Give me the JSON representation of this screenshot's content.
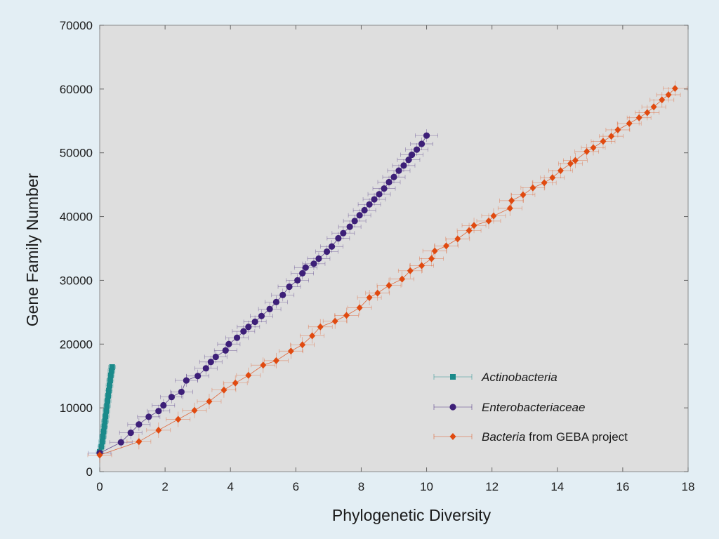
{
  "chart_data": {
    "type": "scatter",
    "title": "",
    "xlabel": "Phylogenetic Diversity",
    "ylabel": "Gene Family Number",
    "xlim": [
      0,
      18
    ],
    "ylim": [
      0,
      70000
    ],
    "xticks": [
      0,
      2,
      4,
      6,
      8,
      10,
      12,
      14,
      16,
      18
    ],
    "yticks": [
      0,
      10000,
      20000,
      30000,
      40000,
      50000,
      60000,
      70000
    ],
    "xtick_labels": [
      "0",
      "2",
      "4",
      "6",
      "8",
      "10",
      "12",
      "14",
      "16",
      "18"
    ],
    "ytick_labels": [
      "0",
      "10000",
      "20000",
      "30000",
      "40000",
      "50000",
      "60000",
      "70000"
    ],
    "grid": false,
    "error_bars": "horizontal and vertical on every point",
    "legend_position": "bottom-right",
    "background_color": "#e0e0e0",
    "series": [
      {
        "name": "Actinobacteria",
        "marker": "square",
        "color": "#1a8a8a",
        "points": [
          [
            0.0,
            3100
          ],
          [
            0.05,
            3900
          ],
          [
            0.08,
            4700
          ],
          [
            0.1,
            5500
          ],
          [
            0.12,
            6300
          ],
          [
            0.14,
            7100
          ],
          [
            0.16,
            7900
          ],
          [
            0.18,
            8700
          ],
          [
            0.2,
            9500
          ],
          [
            0.22,
            10300
          ],
          [
            0.24,
            11100
          ],
          [
            0.26,
            11900
          ],
          [
            0.28,
            12700
          ],
          [
            0.3,
            13500
          ],
          [
            0.32,
            14300
          ],
          [
            0.34,
            15100
          ],
          [
            0.36,
            15800
          ],
          [
            0.38,
            16400
          ]
        ]
      },
      {
        "name": "Enterobacteriaceae",
        "marker": "circle",
        "color": "#3d1f78",
        "points": [
          [
            0.0,
            2900
          ],
          [
            0.65,
            4600
          ],
          [
            0.95,
            6100
          ],
          [
            1.2,
            7400
          ],
          [
            1.5,
            8600
          ],
          [
            1.8,
            9500
          ],
          [
            1.95,
            10400
          ],
          [
            2.2,
            11700
          ],
          [
            2.5,
            12500
          ],
          [
            2.65,
            14300
          ],
          [
            3.0,
            15000
          ],
          [
            3.25,
            16200
          ],
          [
            3.4,
            17200
          ],
          [
            3.55,
            18000
          ],
          [
            3.85,
            19000
          ],
          [
            3.95,
            20000
          ],
          [
            4.2,
            21000
          ],
          [
            4.4,
            22000
          ],
          [
            4.55,
            22700
          ],
          [
            4.75,
            23500
          ],
          [
            4.95,
            24400
          ],
          [
            5.2,
            25500
          ],
          [
            5.4,
            26600
          ],
          [
            5.6,
            27700
          ],
          [
            5.8,
            29000
          ],
          [
            6.05,
            30000
          ],
          [
            6.2,
            31100
          ],
          [
            6.3,
            32000
          ],
          [
            6.55,
            32600
          ],
          [
            6.7,
            33400
          ],
          [
            6.95,
            34500
          ],
          [
            7.1,
            35300
          ],
          [
            7.3,
            36600
          ],
          [
            7.45,
            37400
          ],
          [
            7.65,
            38400
          ],
          [
            7.8,
            39300
          ],
          [
            7.95,
            40200
          ],
          [
            8.1,
            41000
          ],
          [
            8.25,
            41900
          ],
          [
            8.4,
            42700
          ],
          [
            8.55,
            43500
          ],
          [
            8.7,
            44400
          ],
          [
            8.85,
            45400
          ],
          [
            9.0,
            46200
          ],
          [
            9.15,
            47200
          ],
          [
            9.3,
            48000
          ],
          [
            9.45,
            48900
          ],
          [
            9.55,
            49700
          ],
          [
            9.7,
            50500
          ],
          [
            9.85,
            51400
          ],
          [
            10.0,
            52700
          ]
        ]
      },
      {
        "name": "Bacteria from GEBA project",
        "name_italic": "Bacteria",
        "name_rest": " from GEBA project",
        "marker": "diamond",
        "color": "#e04a10",
        "points": [
          [
            0.0,
            2600
          ],
          [
            1.2,
            4700
          ],
          [
            1.8,
            6500
          ],
          [
            2.4,
            8200
          ],
          [
            2.9,
            9600
          ],
          [
            3.35,
            11000
          ],
          [
            3.8,
            12800
          ],
          [
            4.15,
            13900
          ],
          [
            4.55,
            15100
          ],
          [
            5.0,
            16700
          ],
          [
            5.4,
            17400
          ],
          [
            5.85,
            18900
          ],
          [
            6.2,
            19900
          ],
          [
            6.5,
            21300
          ],
          [
            6.75,
            22700
          ],
          [
            7.2,
            23600
          ],
          [
            7.55,
            24500
          ],
          [
            7.95,
            25700
          ],
          [
            8.25,
            27300
          ],
          [
            8.5,
            28000
          ],
          [
            8.85,
            29200
          ],
          [
            9.25,
            30200
          ],
          [
            9.5,
            31500
          ],
          [
            9.85,
            32300
          ],
          [
            10.15,
            33400
          ],
          [
            10.25,
            34600
          ],
          [
            10.6,
            35400
          ],
          [
            10.95,
            36500
          ],
          [
            11.3,
            37800
          ],
          [
            11.45,
            38600
          ],
          [
            11.9,
            39300
          ],
          [
            12.05,
            40100
          ],
          [
            12.55,
            41300
          ],
          [
            12.6,
            42500
          ],
          [
            12.95,
            43400
          ],
          [
            13.25,
            44500
          ],
          [
            13.6,
            45300
          ],
          [
            13.85,
            46100
          ],
          [
            14.1,
            47200
          ],
          [
            14.4,
            48300
          ],
          [
            14.55,
            48800
          ],
          [
            14.9,
            50200
          ],
          [
            15.1,
            50800
          ],
          [
            15.4,
            51800
          ],
          [
            15.65,
            52600
          ],
          [
            15.85,
            53600
          ],
          [
            16.2,
            54600
          ],
          [
            16.5,
            55500
          ],
          [
            16.75,
            56300
          ],
          [
            16.95,
            57200
          ],
          [
            17.2,
            58300
          ],
          [
            17.4,
            59100
          ],
          [
            17.6,
            60100
          ]
        ]
      }
    ]
  }
}
